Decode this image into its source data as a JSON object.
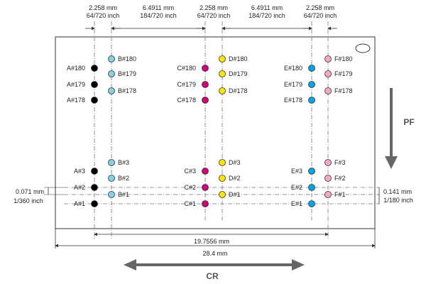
{
  "top_dims": [
    {
      "mm": "2.258 mm",
      "inch": "64/720 inch"
    },
    {
      "mm": "6.4911 mm",
      "inch": "184/720 inch"
    },
    {
      "mm": "2.258 mm",
      "inch": "64/720 inch"
    },
    {
      "mm": "6.4911 mm",
      "inch": "184/720 inch"
    },
    {
      "mm": "2.258 mm",
      "inch": "64/720 inch"
    }
  ],
  "left_dim": {
    "mm": "0.071 mm",
    "inch": "1/360 inch"
  },
  "right_dim": {
    "mm": "0.141 mm",
    "inch": "1/180 inch"
  },
  "bottom_dims": {
    "inner": "19.7556 mm",
    "outer": "28.4 mm"
  },
  "arrows": {
    "pf": "PF",
    "cr": "CR"
  },
  "colors": {
    "A": "#000000",
    "B": "#87CEEB",
    "C": "#D10078",
    "D": "#FFE500",
    "E": "#00A6E0",
    "F": "#F7A8C0"
  },
  "columns": [
    {
      "id": "A",
      "labels_left": true,
      "labels": [
        "A#180",
        "A#179",
        "A#178",
        "A#3",
        "A#2",
        "A#1"
      ]
    },
    {
      "id": "B",
      "labels_left": false,
      "labels": [
        "B#180",
        "B#179",
        "B#178",
        "B#3",
        "B#2",
        "B#1"
      ]
    },
    {
      "id": "C",
      "labels_left": true,
      "labels": [
        "C#180",
        "C#179",
        "C#178",
        "C#3",
        "C#2",
        "C#1"
      ]
    },
    {
      "id": "D",
      "labels_left": false,
      "labels": [
        "D#180",
        "D#179",
        "D#178",
        "D#3",
        "D#2",
        "D#1"
      ]
    },
    {
      "id": "E",
      "labels_left": true,
      "labels": [
        "E#180",
        "E#179",
        "E#178",
        "E#3",
        "E#2",
        "E#1"
      ]
    },
    {
      "id": "F",
      "labels_left": false,
      "labels": [
        "F#180",
        "F#179",
        "F#178",
        "F#3",
        "F#2",
        "F#1"
      ]
    }
  ]
}
